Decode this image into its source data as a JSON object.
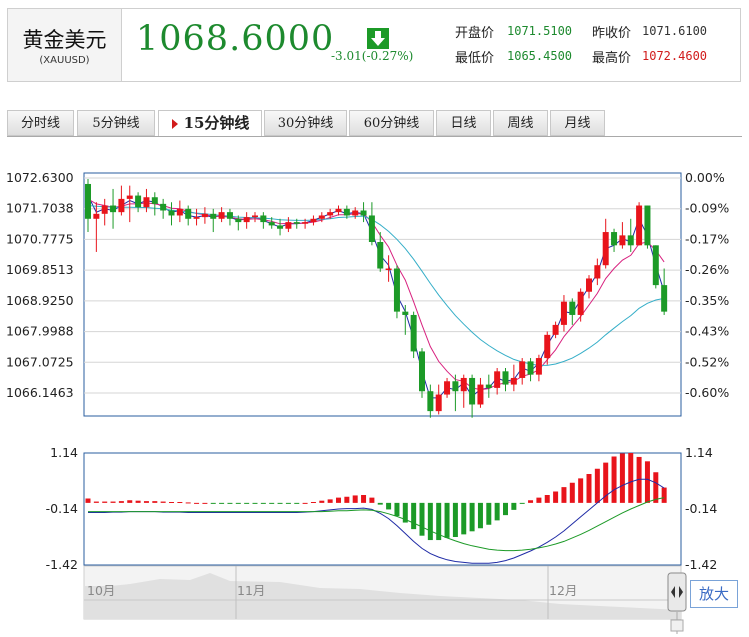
{
  "instrument": {
    "name_zh": "黄金美元",
    "code": "(XAUUSD)"
  },
  "quote": {
    "price": "1068.6000",
    "change": "-3.01(-0.27%)",
    "open_label": "开盘价",
    "open_value": "1071.5100",
    "prev_close_label": "昨收价",
    "prev_close_value": "1071.6100",
    "low_label": "最低价",
    "low_value": "1065.4500",
    "high_label": "最高价",
    "high_value": "1072.4600"
  },
  "tabs": [
    {
      "label": "分时线",
      "active": false
    },
    {
      "label": "5分钟线",
      "active": false
    },
    {
      "label": "15分钟线",
      "active": true
    },
    {
      "label": "30分钟线",
      "active": false
    },
    {
      "label": "60分钟线",
      "active": false
    },
    {
      "label": "日线",
      "active": false
    },
    {
      "label": "周线",
      "active": false
    },
    {
      "label": "月线",
      "active": false
    }
  ],
  "colors": {
    "up": "#e8141b",
    "down": "#1c9a27",
    "price_green": "#1d8a2e",
    "high_red": "#d11b1b",
    "frame": "#2a5d9f",
    "grid": "#d5d5d5"
  },
  "icons": {
    "change_direction": "down-arrow-icon"
  },
  "chart_data": [
    {
      "type": "candlestick",
      "y_ticks_left": [
        "1072.6300",
        "1071.7038",
        "1070.7775",
        "1069.8513",
        "1068.9250",
        "1067.9988",
        "1067.0725",
        "1066.1463"
      ],
      "y_ticks_right": [
        "0.00%",
        "-0.09%",
        "-0.17%",
        "-0.26%",
        "-0.35%",
        "-0.43%",
        "-0.52%",
        "-0.60%"
      ],
      "ylim": [
        1065.5,
        1072.6
      ],
      "grid": true,
      "candles": [
        [
          1072.45,
          1071.4,
          1072.6,
          1071.0
        ],
        [
          1071.4,
          1071.55,
          1071.9,
          1070.4
        ],
        [
          1071.55,
          1071.8,
          1072.0,
          1071.2
        ],
        [
          1071.8,
          1071.6,
          1072.3,
          1071.1
        ],
        [
          1071.6,
          1072.0,
          1072.4,
          1071.5
        ],
        [
          1072.0,
          1072.1,
          1072.4,
          1071.3
        ],
        [
          1072.1,
          1071.75,
          1072.2,
          1071.6
        ],
        [
          1071.75,
          1072.05,
          1072.3,
          1071.6
        ],
        [
          1072.05,
          1071.85,
          1072.2,
          1071.5
        ],
        [
          1071.85,
          1071.65,
          1072.0,
          1071.4
        ],
        [
          1071.65,
          1071.5,
          1071.9,
          1071.2
        ],
        [
          1071.5,
          1071.7,
          1071.95,
          1071.3
        ],
        [
          1071.7,
          1071.4,
          1071.8,
          1071.2
        ],
        [
          1071.4,
          1071.45,
          1071.7,
          1071.2
        ],
        [
          1071.45,
          1071.55,
          1071.75,
          1071.25
        ],
        [
          1071.55,
          1071.4,
          1071.7,
          1071.0
        ],
        [
          1071.4,
          1071.6,
          1071.75,
          1071.3
        ],
        [
          1071.6,
          1071.4,
          1071.7,
          1071.2
        ],
        [
          1071.4,
          1071.3,
          1071.5,
          1071.05
        ],
        [
          1071.3,
          1071.45,
          1071.6,
          1071.1
        ],
        [
          1071.45,
          1071.5,
          1071.6,
          1071.3
        ],
        [
          1071.5,
          1071.3,
          1071.6,
          1071.1
        ],
        [
          1071.3,
          1071.2,
          1071.45,
          1071.1
        ],
        [
          1071.2,
          1071.1,
          1071.4,
          1070.9
        ],
        [
          1071.1,
          1071.3,
          1071.45,
          1071.0
        ],
        [
          1071.3,
          1071.25,
          1071.4,
          1071.1
        ],
        [
          1071.25,
          1071.3,
          1071.4,
          1071.1
        ],
        [
          1071.3,
          1071.4,
          1071.5,
          1071.2
        ],
        [
          1071.4,
          1071.5,
          1071.6,
          1071.3
        ],
        [
          1071.5,
          1071.6,
          1071.7,
          1071.4
        ],
        [
          1071.6,
          1071.7,
          1071.8,
          1071.5
        ],
        [
          1071.7,
          1071.5,
          1071.8,
          1071.4
        ],
        [
          1071.5,
          1071.65,
          1071.75,
          1071.4
        ],
        [
          1071.65,
          1071.5,
          1071.9,
          1071.3
        ],
        [
          1071.5,
          1070.7,
          1071.9,
          1070.6
        ],
        [
          1070.7,
          1069.9,
          1071.0,
          1069.8
        ],
        [
          1069.9,
          1069.9,
          1070.3,
          1069.5
        ],
        [
          1069.9,
          1068.6,
          1070.0,
          1068.4
        ],
        [
          1068.6,
          1068.5,
          1068.8,
          1067.9
        ],
        [
          1068.5,
          1067.4,
          1068.6,
          1067.2
        ],
        [
          1067.4,
          1066.2,
          1067.5,
          1066.0
        ],
        [
          1066.2,
          1065.6,
          1066.4,
          1065.4
        ],
        [
          1065.6,
          1066.1,
          1066.4,
          1065.5
        ],
        [
          1066.1,
          1066.5,
          1066.6,
          1066.0
        ],
        [
          1066.5,
          1066.2,
          1066.7,
          1065.6
        ],
        [
          1066.2,
          1066.6,
          1066.7,
          1065.7
        ],
        [
          1066.6,
          1065.8,
          1066.7,
          1065.4
        ],
        [
          1065.8,
          1066.4,
          1066.6,
          1065.7
        ],
        [
          1066.4,
          1066.3,
          1066.7,
          1066.0
        ],
        [
          1066.3,
          1066.8,
          1066.9,
          1066.1
        ],
        [
          1066.8,
          1066.4,
          1066.9,
          1066.2
        ],
        [
          1066.4,
          1066.6,
          1067.0,
          1066.2
        ],
        [
          1066.6,
          1067.1,
          1067.2,
          1066.4
        ],
        [
          1067.1,
          1066.7,
          1067.2,
          1066.5
        ],
        [
          1066.7,
          1067.2,
          1067.3,
          1066.5
        ],
        [
          1067.2,
          1067.9,
          1068.0,
          1067.0
        ],
        [
          1067.9,
          1068.2,
          1068.3,
          1067.8
        ],
        [
          1068.2,
          1068.9,
          1069.1,
          1068.0
        ],
        [
          1068.9,
          1068.5,
          1069.0,
          1068.2
        ],
        [
          1068.5,
          1069.2,
          1069.3,
          1068.3
        ],
        [
          1069.2,
          1069.6,
          1069.7,
          1069.0
        ],
        [
          1069.6,
          1070.0,
          1070.2,
          1069.4
        ],
        [
          1070.0,
          1071.0,
          1071.4,
          1069.9
        ],
        [
          1071.0,
          1070.6,
          1071.1,
          1070.4
        ],
        [
          1070.6,
          1070.9,
          1071.3,
          1070.5
        ],
        [
          1070.9,
          1070.6,
          1071.4,
          1070.4
        ],
        [
          1070.6,
          1071.8,
          1071.9,
          1070.6
        ],
        [
          1071.8,
          1070.6,
          1071.8,
          1070.5
        ],
        [
          1070.6,
          1069.4,
          1070.6,
          1069.3
        ],
        [
          1069.4,
          1068.6,
          1069.9,
          1068.5
        ]
      ],
      "series": [
        {
          "values": [
            1072.1,
            1071.6,
            1071.7,
            1071.65,
            1071.8,
            1071.95,
            1071.85,
            1071.95,
            1071.9,
            1071.75,
            1071.6,
            1071.65,
            1071.5,
            1071.45,
            1071.5,
            1071.45,
            1071.5,
            1071.45,
            1071.35,
            1071.4,
            1071.45,
            1071.35,
            1071.25,
            1071.15,
            1071.25,
            1071.25,
            1071.28,
            1071.35,
            1071.45,
            1071.55,
            1071.65,
            1071.55,
            1071.6,
            1071.55,
            1071.0,
            1070.3,
            1070.0,
            1069.1,
            1068.6,
            1067.8,
            1066.8,
            1066.0,
            1066.0,
            1066.3,
            1066.25,
            1066.45,
            1066.05,
            1066.25,
            1066.3,
            1066.6,
            1066.5,
            1066.55,
            1066.9,
            1066.8,
            1067.05,
            1067.6,
            1068.0,
            1068.6,
            1068.55,
            1068.95,
            1069.35,
            1069.75,
            1070.5,
            1070.6,
            1070.8,
            1070.7,
            1071.4,
            1070.9,
            1070.0,
            1069.2
          ]
        },
        {
          "values": [
            1072.0,
            1071.85,
            1071.8,
            1071.75,
            1071.78,
            1071.85,
            1071.85,
            1071.88,
            1071.85,
            1071.8,
            1071.72,
            1071.7,
            1071.62,
            1071.56,
            1071.52,
            1071.48,
            1071.47,
            1071.45,
            1071.4,
            1071.38,
            1071.4,
            1071.37,
            1071.32,
            1071.25,
            1071.26,
            1071.26,
            1071.27,
            1071.3,
            1071.36,
            1071.44,
            1071.52,
            1071.52,
            1071.55,
            1071.55,
            1071.3,
            1070.9,
            1070.55,
            1070.0,
            1069.55,
            1068.9,
            1068.2,
            1067.55,
            1067.1,
            1066.8,
            1066.55,
            1066.5,
            1066.3,
            1066.25,
            1066.28,
            1066.4,
            1066.45,
            1066.5,
            1066.65,
            1066.72,
            1066.85,
            1067.15,
            1067.45,
            1067.85,
            1068.15,
            1068.45,
            1068.8,
            1069.15,
            1069.6,
            1069.9,
            1070.15,
            1070.3,
            1070.65,
            1070.7,
            1070.45,
            1070.1
          ]
        },
        {
          "values": [
            1071.8,
            1071.78,
            1071.76,
            1071.75,
            1071.75,
            1071.75,
            1071.74,
            1071.74,
            1071.72,
            1071.7,
            1071.66,
            1071.64,
            1071.6,
            1071.57,
            1071.55,
            1071.52,
            1071.5,
            1071.48,
            1071.45,
            1071.44,
            1071.43,
            1071.42,
            1071.4,
            1071.37,
            1071.36,
            1071.35,
            1071.35,
            1071.36,
            1071.38,
            1071.4,
            1071.44,
            1071.45,
            1071.47,
            1071.48,
            1071.38,
            1071.22,
            1071.02,
            1070.78,
            1070.5,
            1070.18,
            1069.82,
            1069.45,
            1069.1,
            1068.78,
            1068.48,
            1068.22,
            1067.98,
            1067.76,
            1067.58,
            1067.42,
            1067.28,
            1067.16,
            1067.08,
            1067.02,
            1066.98,
            1066.98,
            1067.02,
            1067.1,
            1067.2,
            1067.34,
            1067.5,
            1067.68,
            1067.9,
            1068.1,
            1068.3,
            1068.48,
            1068.7,
            1068.85,
            1068.95,
            1069.0
          ]
        }
      ]
    },
    {
      "type": "bar",
      "y_ticks_left": [
        "1.14",
        "-0.14",
        "-1.42"
      ],
      "y_ticks_right": [
        "1.14",
        "-0.14",
        "-1.42"
      ],
      "ylim": [
        -1.42,
        1.14
      ],
      "values": [
        0.1,
        0.03,
        0.03,
        0.03,
        0.04,
        0.06,
        0.05,
        0.04,
        0.04,
        0.03,
        0.02,
        0.02,
        0.01,
        0.0,
        0.0,
        -0.01,
        -0.01,
        -0.01,
        -0.01,
        -0.01,
        -0.01,
        -0.01,
        -0.01,
        -0.02,
        -0.01,
        -0.01,
        0.0,
        0.02,
        0.05,
        0.08,
        0.12,
        0.14,
        0.17,
        0.18,
        0.12,
        -0.04,
        -0.15,
        -0.3,
        -0.45,
        -0.6,
        -0.75,
        -0.85,
        -0.85,
        -0.8,
        -0.78,
        -0.72,
        -0.65,
        -0.58,
        -0.5,
        -0.4,
        -0.28,
        -0.16,
        -0.02,
        0.06,
        0.12,
        0.18,
        0.26,
        0.36,
        0.46,
        0.56,
        0.66,
        0.78,
        0.92,
        1.06,
        1.13,
        1.14,
        1.05,
        0.95,
        0.7,
        0.35
      ],
      "series": [
        {
          "values": [
            -0.22,
            -0.22,
            -0.22,
            -0.21,
            -0.21,
            -0.2,
            -0.2,
            -0.2,
            -0.2,
            -0.21,
            -0.21,
            -0.21,
            -0.22,
            -0.22,
            -0.22,
            -0.22,
            -0.22,
            -0.22,
            -0.22,
            -0.22,
            -0.22,
            -0.22,
            -0.22,
            -0.22,
            -0.22,
            -0.22,
            -0.21,
            -0.2,
            -0.18,
            -0.16,
            -0.14,
            -0.13,
            -0.13,
            -0.12,
            -0.15,
            -0.24,
            -0.36,
            -0.52,
            -0.7,
            -0.88,
            -1.04,
            -1.16,
            -1.24,
            -1.3,
            -1.34,
            -1.36,
            -1.38,
            -1.38,
            -1.38,
            -1.36,
            -1.32,
            -1.26,
            -1.18,
            -1.1,
            -1.01,
            -0.9,
            -0.78,
            -0.64,
            -0.48,
            -0.32,
            -0.16,
            0.0,
            0.16,
            0.3,
            0.4,
            0.48,
            0.54,
            0.54,
            0.46,
            0.34
          ]
        },
        {
          "values": [
            -0.2,
            -0.2,
            -0.2,
            -0.2,
            -0.2,
            -0.2,
            -0.2,
            -0.2,
            -0.2,
            -0.2,
            -0.2,
            -0.2,
            -0.2,
            -0.2,
            -0.2,
            -0.2,
            -0.2,
            -0.2,
            -0.2,
            -0.2,
            -0.2,
            -0.2,
            -0.2,
            -0.2,
            -0.2,
            -0.2,
            -0.2,
            -0.2,
            -0.2,
            -0.19,
            -0.18,
            -0.18,
            -0.17,
            -0.16,
            -0.17,
            -0.2,
            -0.25,
            -0.31,
            -0.38,
            -0.46,
            -0.55,
            -0.64,
            -0.72,
            -0.8,
            -0.87,
            -0.93,
            -0.98,
            -1.02,
            -1.06,
            -1.08,
            -1.09,
            -1.09,
            -1.08,
            -1.06,
            -1.03,
            -0.99,
            -0.94,
            -0.88,
            -0.8,
            -0.72,
            -0.63,
            -0.53,
            -0.43,
            -0.33,
            -0.23,
            -0.14,
            -0.06,
            0.02,
            0.08,
            0.12
          ]
        }
      ]
    }
  ],
  "timeline": {
    "months": [
      "10月",
      "11月",
      "12月"
    ]
  },
  "zoom_button": {
    "label": "放大"
  }
}
